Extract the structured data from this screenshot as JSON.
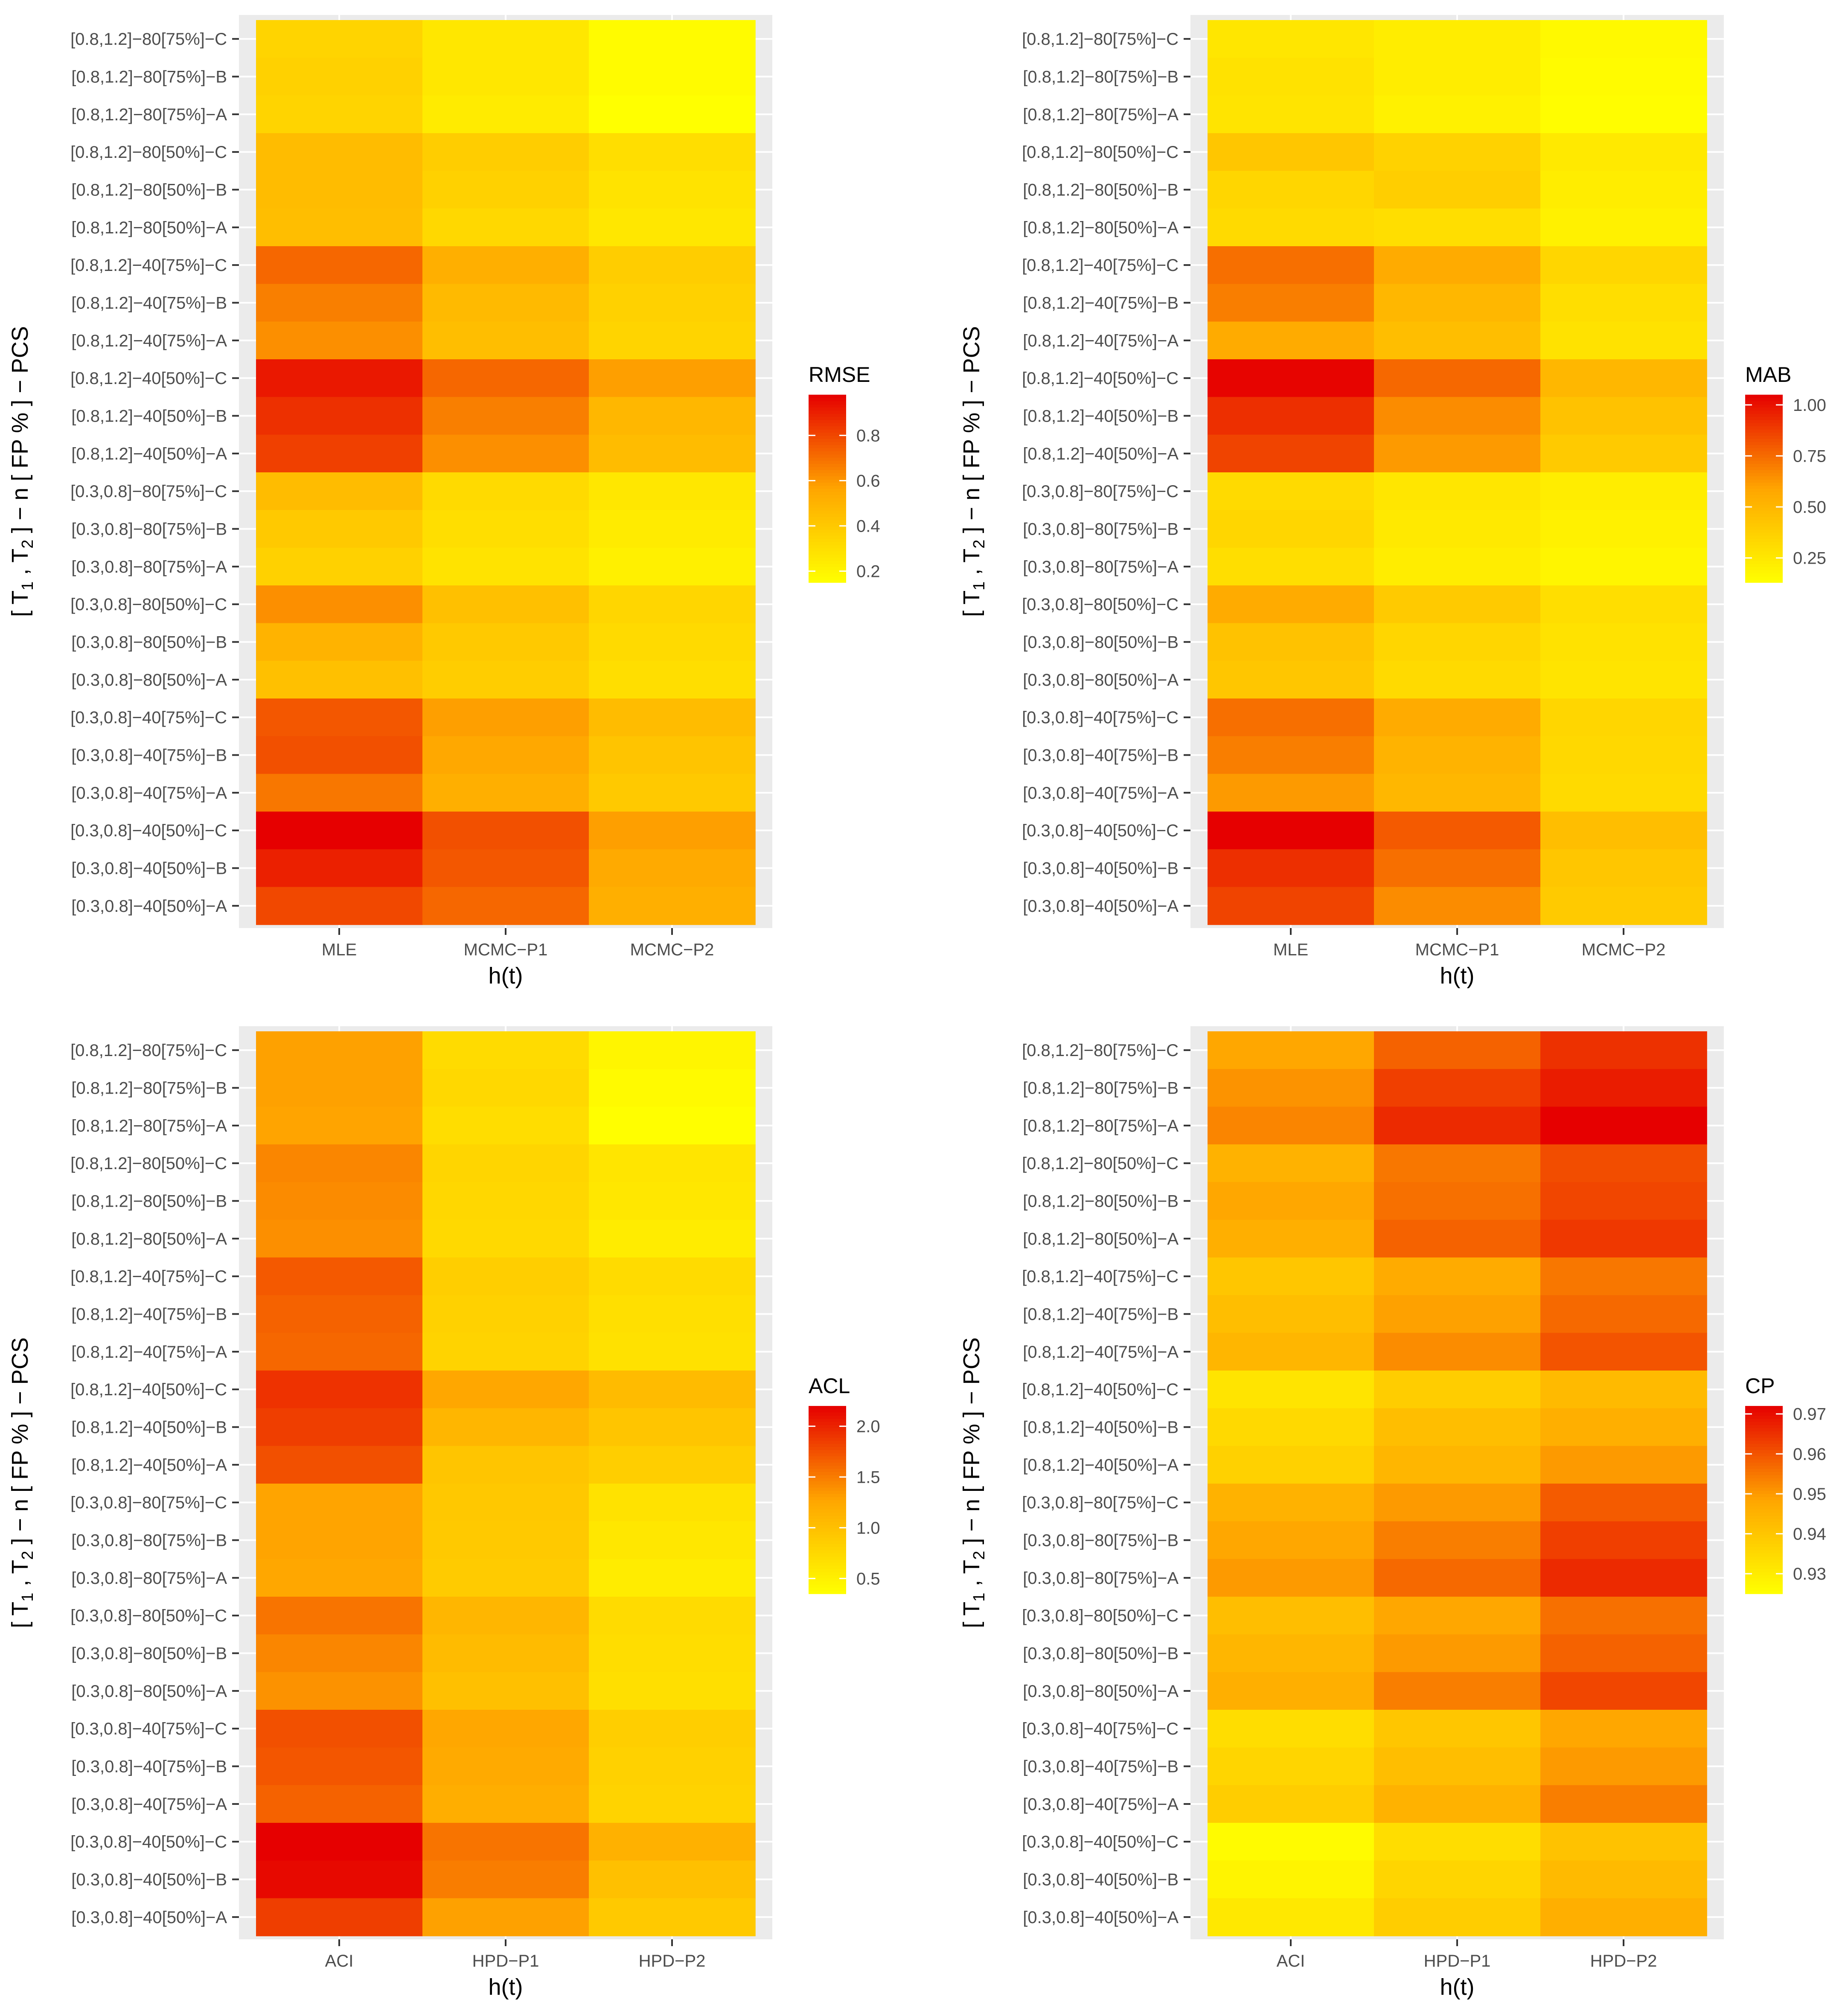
{
  "figure": {
    "colors": {
      "panel_bg": "#EBEBEB",
      "grid": "#FFFFFF",
      "tick": "#333333",
      "low": "#FFFF00",
      "mid": "#FFA500",
      "high": "#E60000"
    },
    "rows_top_to_bottom": [
      "[0.8,1.2]−80[75%]−C",
      "[0.8,1.2]−80[75%]−B",
      "[0.8,1.2]−80[75%]−A",
      "[0.8,1.2]−80[50%]−C",
      "[0.8,1.2]−80[50%]−B",
      "[0.8,1.2]−80[50%]−A",
      "[0.8,1.2]−40[75%]−C",
      "[0.8,1.2]−40[75%]−B",
      "[0.8,1.2]−40[75%]−A",
      "[0.8,1.2]−40[50%]−C",
      "[0.8,1.2]−40[50%]−B",
      "[0.8,1.2]−40[50%]−A",
      "[0.3,0.8]−80[75%]−C",
      "[0.3,0.8]−80[75%]−B",
      "[0.3,0.8]−80[75%]−A",
      "[0.3,0.8]−80[50%]−C",
      "[0.3,0.8]−80[50%]−B",
      "[0.3,0.8]−80[50%]−A",
      "[0.3,0.8]−40[75%]−C",
      "[0.3,0.8]−40[75%]−B",
      "[0.3,0.8]−40[75%]−A",
      "[0.3,0.8]−40[50%]−C",
      "[0.3,0.8]−40[50%]−B",
      "[0.3,0.8]−40[50%]−A"
    ]
  },
  "chart_data": [
    {
      "type": "heatmap",
      "xlabel": "h(t)",
      "ylabel_parts": [
        "[ T",
        "1",
        " , T",
        "2",
        " ] − n [ FP % ] − PCS"
      ],
      "categories": [
        "MLE",
        "MCMC−P1",
        "MCMC−P2"
      ],
      "legend": {
        "title": "RMSE",
        "range": [
          0.15,
          0.98
        ],
        "ticks": [
          0.2,
          0.4,
          0.6,
          0.8
        ],
        "tick_labels": [
          "0.2",
          "0.4",
          "0.6",
          "0.8"
        ]
      },
      "values": [
        [
          0.35,
          0.26,
          0.17
        ],
        [
          0.36,
          0.26,
          0.17
        ],
        [
          0.35,
          0.24,
          0.15
        ],
        [
          0.46,
          0.38,
          0.3
        ],
        [
          0.46,
          0.36,
          0.28
        ],
        [
          0.45,
          0.33,
          0.26
        ],
        [
          0.72,
          0.52,
          0.38
        ],
        [
          0.66,
          0.47,
          0.36
        ],
        [
          0.62,
          0.45,
          0.35
        ],
        [
          0.92,
          0.72,
          0.58
        ],
        [
          0.86,
          0.66,
          0.48
        ],
        [
          0.82,
          0.62,
          0.46
        ],
        [
          0.46,
          0.32,
          0.26
        ],
        [
          0.4,
          0.3,
          0.24
        ],
        [
          0.36,
          0.28,
          0.22
        ],
        [
          0.62,
          0.44,
          0.34
        ],
        [
          0.5,
          0.4,
          0.32
        ],
        [
          0.44,
          0.38,
          0.3
        ],
        [
          0.76,
          0.58,
          0.46
        ],
        [
          0.78,
          0.55,
          0.42
        ],
        [
          0.68,
          0.52,
          0.4
        ],
        [
          0.98,
          0.78,
          0.58
        ],
        [
          0.9,
          0.76,
          0.54
        ],
        [
          0.8,
          0.72,
          0.52
        ]
      ]
    },
    {
      "type": "heatmap",
      "xlabel": "h(t)",
      "ylabel_parts": [
        "[ T",
        "1",
        " , T",
        "2",
        " ] − n [ FP % ] − PCS"
      ],
      "categories": [
        "MLE",
        "MCMC−P1",
        "MCMC−P2"
      ],
      "legend": {
        "title": "MAB",
        "range": [
          0.13,
          1.05
        ],
        "ticks": [
          0.25,
          0.5,
          0.75,
          1.0
        ],
        "tick_labels": [
          "0.25",
          "0.50",
          "0.75",
          "1.00"
        ]
      },
      "values": [
        [
          0.26,
          0.22,
          0.16
        ],
        [
          0.28,
          0.22,
          0.15
        ],
        [
          0.27,
          0.2,
          0.14
        ],
        [
          0.42,
          0.36,
          0.24
        ],
        [
          0.34,
          0.38,
          0.22
        ],
        [
          0.32,
          0.3,
          0.2
        ],
        [
          0.74,
          0.56,
          0.34
        ],
        [
          0.7,
          0.5,
          0.3
        ],
        [
          0.56,
          0.46,
          0.28
        ],
        [
          1.04,
          0.76,
          0.5
        ],
        [
          0.92,
          0.66,
          0.44
        ],
        [
          0.86,
          0.62,
          0.4
        ],
        [
          0.32,
          0.26,
          0.22
        ],
        [
          0.34,
          0.24,
          0.2
        ],
        [
          0.3,
          0.22,
          0.18
        ],
        [
          0.56,
          0.4,
          0.3
        ],
        [
          0.44,
          0.34,
          0.28
        ],
        [
          0.42,
          0.32,
          0.27
        ],
        [
          0.74,
          0.56,
          0.34
        ],
        [
          0.7,
          0.52,
          0.33
        ],
        [
          0.62,
          0.5,
          0.32
        ],
        [
          1.05,
          0.8,
          0.46
        ],
        [
          0.92,
          0.74,
          0.42
        ],
        [
          0.86,
          0.66,
          0.4
        ]
      ]
    },
    {
      "type": "heatmap",
      "xlabel": "h(t)",
      "ylabel_parts": [
        "[ T",
        "1",
        " , T",
        "2",
        " ] − n [ FP % ] − PCS"
      ],
      "categories": [
        "ACI",
        "HPD−P1",
        "HPD−P2"
      ],
      "legend": {
        "title": "ACL",
        "range": [
          0.35,
          2.2
        ],
        "ticks": [
          0.5,
          1.0,
          1.5,
          2.0
        ],
        "tick_labels": [
          "0.5",
          "1.0",
          "1.5",
          "2.0"
        ]
      },
      "values": [
        [
          1.3,
          0.72,
          0.45
        ],
        [
          1.3,
          0.75,
          0.4
        ],
        [
          1.28,
          0.7,
          0.36
        ],
        [
          1.45,
          0.78,
          0.62
        ],
        [
          1.42,
          0.76,
          0.6
        ],
        [
          1.4,
          0.74,
          0.55
        ],
        [
          1.7,
          0.85,
          0.72
        ],
        [
          1.65,
          0.82,
          0.68
        ],
        [
          1.62,
          0.8,
          0.66
        ],
        [
          1.92,
          1.25,
          1.05
        ],
        [
          1.85,
          1.1,
          0.95
        ],
        [
          1.75,
          0.95,
          0.85
        ],
        [
          1.28,
          0.92,
          0.65
        ],
        [
          1.28,
          0.9,
          0.6
        ],
        [
          1.25,
          0.88,
          0.55
        ],
        [
          1.55,
          1.1,
          0.72
        ],
        [
          1.45,
          1.05,
          0.7
        ],
        [
          1.38,
          1.0,
          0.68
        ],
        [
          1.75,
          1.25,
          0.85
        ],
        [
          1.72,
          1.22,
          0.82
        ],
        [
          1.65,
          1.18,
          0.8
        ],
        [
          2.2,
          1.55,
          1.15
        ],
        [
          2.15,
          1.5,
          1.0
        ],
        [
          1.85,
          1.3,
          0.9
        ]
      ]
    },
    {
      "type": "heatmap",
      "xlabel": "h(t)",
      "ylabel_parts": [
        "[ T",
        "1",
        " , T",
        "2",
        " ] − n [ FP % ] − PCS"
      ],
      "categories": [
        "ACI",
        "HPD−P1",
        "HPD−P2"
      ],
      "legend": {
        "title": "CP",
        "range": [
          0.925,
          0.972
        ],
        "ticks": [
          0.93,
          0.94,
          0.95,
          0.96,
          0.97
        ],
        "tick_labels": [
          "0.93",
          "0.94",
          "0.95",
          "0.96",
          "0.97"
        ]
      },
      "values": [
        [
          0.948,
          0.958,
          0.965
        ],
        [
          0.951,
          0.963,
          0.968
        ],
        [
          0.953,
          0.966,
          0.972
        ],
        [
          0.945,
          0.955,
          0.961
        ],
        [
          0.948,
          0.956,
          0.962
        ],
        [
          0.946,
          0.958,
          0.964
        ],
        [
          0.94,
          0.947,
          0.955
        ],
        [
          0.942,
          0.949,
          0.957
        ],
        [
          0.944,
          0.952,
          0.96
        ],
        [
          0.932,
          0.938,
          0.943
        ],
        [
          0.935,
          0.942,
          0.946
        ],
        [
          0.937,
          0.944,
          0.95
        ],
        [
          0.945,
          0.95,
          0.959
        ],
        [
          0.948,
          0.954,
          0.963
        ],
        [
          0.95,
          0.957,
          0.966
        ],
        [
          0.942,
          0.948,
          0.956
        ],
        [
          0.944,
          0.95,
          0.958
        ],
        [
          0.946,
          0.954,
          0.962
        ],
        [
          0.934,
          0.94,
          0.948
        ],
        [
          0.936,
          0.942,
          0.95
        ],
        [
          0.938,
          0.945,
          0.954
        ],
        [
          0.926,
          0.934,
          0.941
        ],
        [
          0.928,
          0.936,
          0.943
        ],
        [
          0.931,
          0.938,
          0.946
        ]
      ]
    }
  ]
}
